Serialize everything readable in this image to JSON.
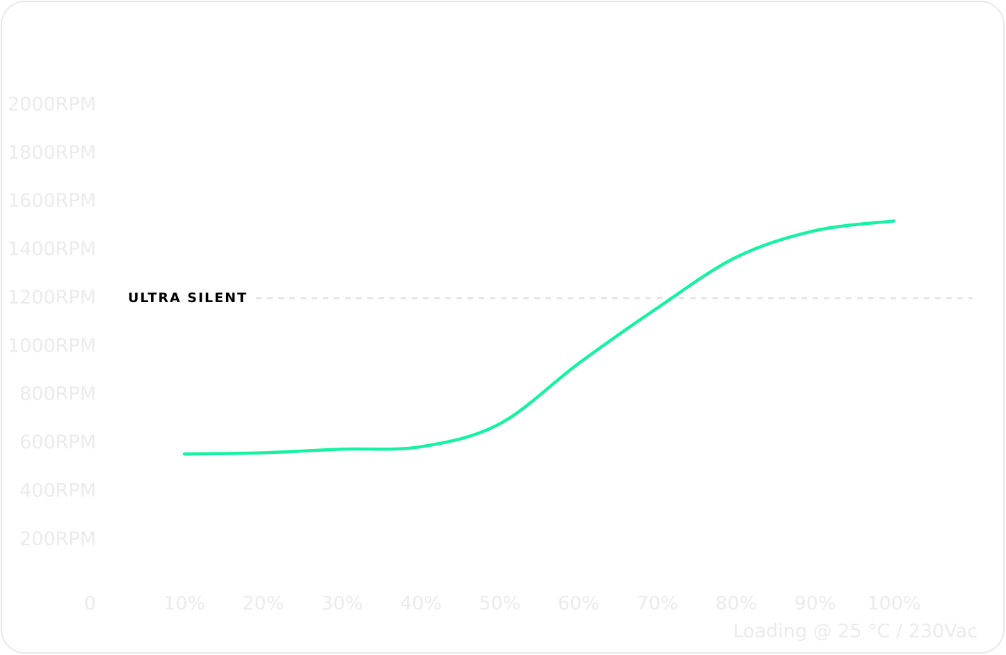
{
  "chart_data": {
    "type": "line",
    "x": [
      10,
      20,
      30,
      40,
      50,
      60,
      70,
      80,
      90,
      100
    ],
    "series": [
      {
        "color": "#14f2a2",
        "values": [
          555,
          560,
          575,
          585,
          680,
          930,
          1160,
          1370,
          1480,
          1520
        ]
      }
    ],
    "xlim": [
      0,
      110
    ],
    "xticks": [
      {
        "value": 10,
        "label": "10%"
      },
      {
        "value": 20,
        "label": "20%"
      },
      {
        "value": 30,
        "label": "30%"
      },
      {
        "value": 40,
        "label": "40%"
      },
      {
        "value": 50,
        "label": "50%"
      },
      {
        "value": 60,
        "label": "60%"
      },
      {
        "value": 70,
        "label": "70%"
      },
      {
        "value": 80,
        "label": "80%"
      },
      {
        "value": 90,
        "label": "90%"
      },
      {
        "value": 100,
        "label": "100%"
      }
    ],
    "ylim": [
      0,
      2000
    ],
    "yticks": [
      0,
      {
        "value": 200,
        "label": "200RPM"
      },
      {
        "value": 400,
        "label": "400RPM"
      },
      {
        "value": 600,
        "label": "600RPM"
      },
      {
        "value": 800,
        "label": "800RPM"
      },
      {
        "value": 1000,
        "label": "1000RPM"
      },
      {
        "value": 1200,
        "label": "1200RPM"
      },
      {
        "value": 1400,
        "label": "1400RPM"
      },
      {
        "value": 1600,
        "label": "1600RPM"
      },
      {
        "value": 1800,
        "label": "1800RPM"
      },
      {
        "value": 2000,
        "label": "2000RPM"
      }
    ],
    "reference_line": {
      "value": 1200,
      "label": "ULTRA SILENT"
    },
    "x_label": "Loading @ 25 °C / 230Vac"
  }
}
